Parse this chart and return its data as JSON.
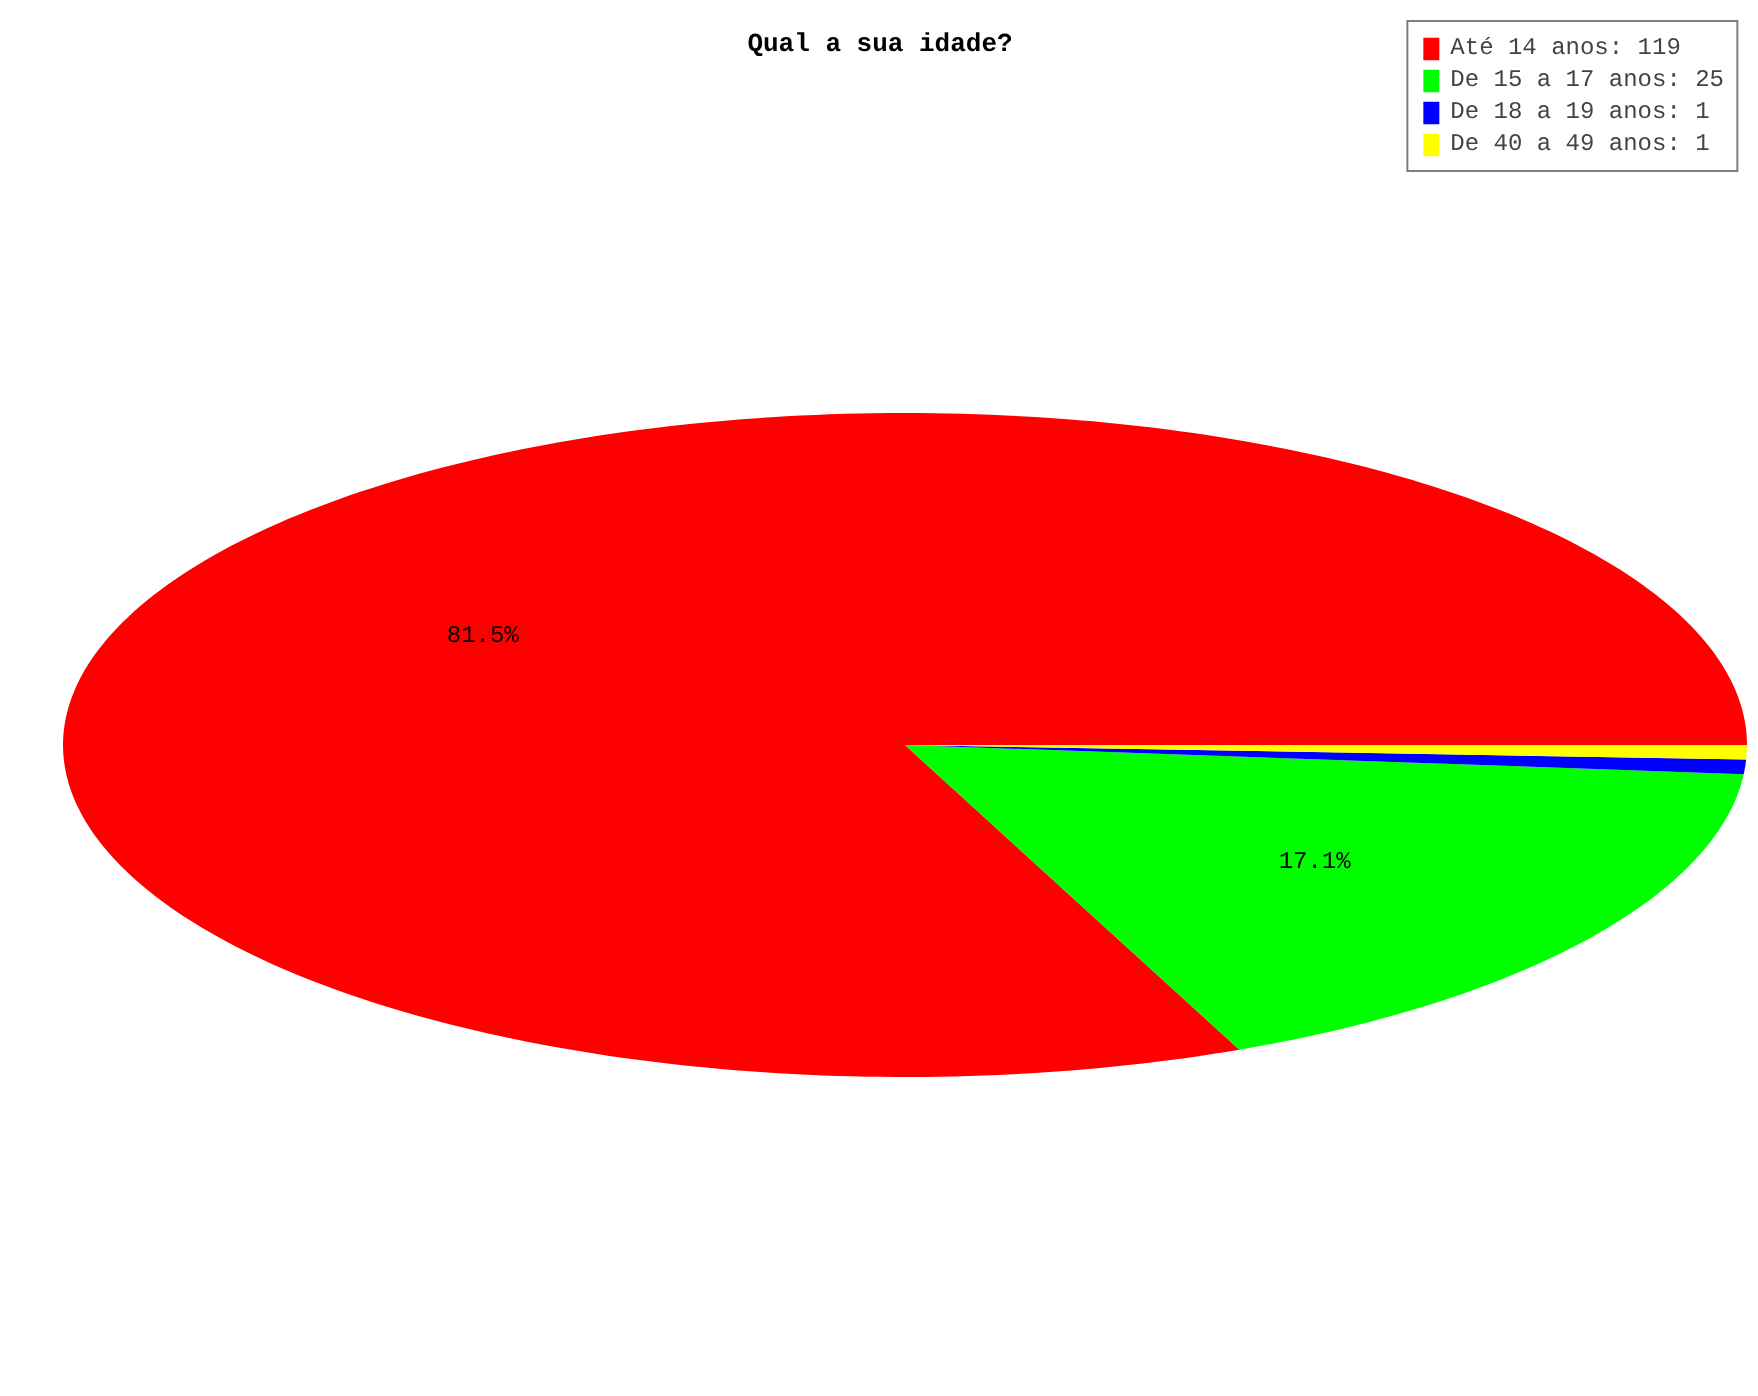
{
  "chart_data": {
    "type": "pie",
    "title": "Qual a sua idade?",
    "categories": [
      "Até 14 anos: 119",
      "De 15 a 17 anos: 25",
      "De 18 a 19 anos: 1",
      "De 40 a 49 anos: 1"
    ],
    "values": [
      81.5,
      17.1,
      0.7,
      0.7
    ],
    "colors": [
      "#ff0000",
      "#00ff00",
      "#0000ff",
      "#ffff00"
    ],
    "value_labels": [
      "81.5%",
      "17.1%",
      null,
      null
    ],
    "legend": "top right"
  }
}
